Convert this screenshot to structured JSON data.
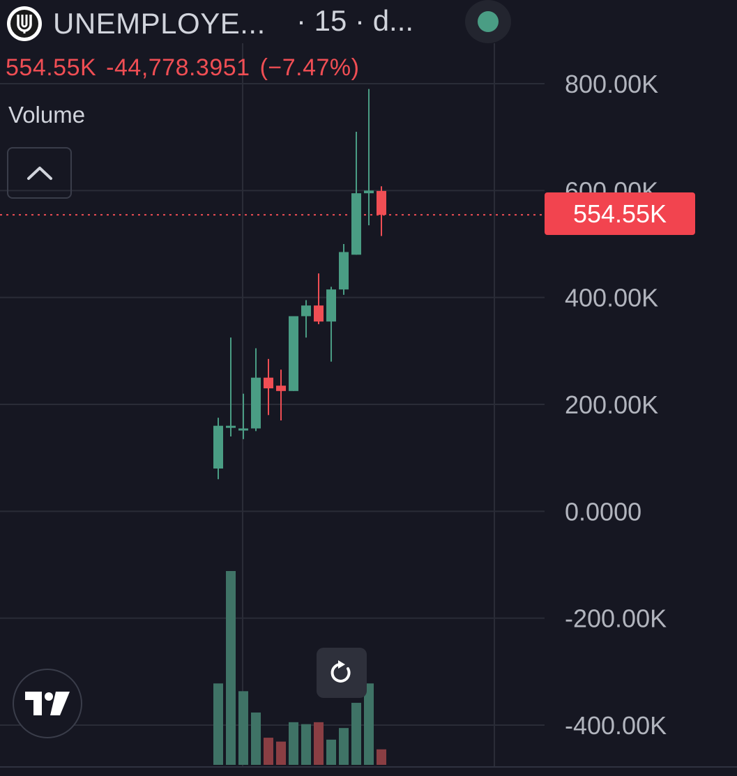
{
  "header": {
    "symbol": "UNEMPLOYE...",
    "interval": "· 15 · d...",
    "last_price": "554.55K",
    "change": "-44,778.3951",
    "change_pct": "(−7.47%)",
    "volume_label": "Volume"
  },
  "price_tag": "554.55K",
  "colors": {
    "background": "#161722",
    "up": "#4a9d84",
    "down": "#f04e54",
    "volume_up": "#3f7366",
    "volume_down": "#8a3e43",
    "grid": "#2a2c37"
  },
  "chart_data": {
    "type": "candlestick",
    "y_ticks": [
      "800.00K",
      "600.00K",
      "400.00K",
      "200.00K",
      "0.0000",
      "-200.00K",
      "-400.00K"
    ],
    "ylim": [
      -480000,
      830000
    ],
    "last_value": 554550,
    "candles": [
      {
        "open": 80000,
        "high": 175000,
        "low": 60000,
        "close": 160000
      },
      {
        "open": 160000,
        "high": 325000,
        "low": 140000,
        "close": 160000
      },
      {
        "open": 155000,
        "high": 220000,
        "low": 135000,
        "close": 155000
      },
      {
        "open": 155000,
        "high": 305000,
        "low": 150000,
        "close": 250000
      },
      {
        "open": 250000,
        "high": 285000,
        "low": 180000,
        "close": 230000
      },
      {
        "open": 235000,
        "high": 265000,
        "low": 170000,
        "close": 225000
      },
      {
        "open": 225000,
        "high": 360000,
        "low": 225000,
        "close": 365000
      },
      {
        "open": 365000,
        "high": 395000,
        "low": 325000,
        "close": 385000
      },
      {
        "open": 385000,
        "high": 445000,
        "low": 350000,
        "close": 355000
      },
      {
        "open": 355000,
        "high": 420000,
        "low": 280000,
        "close": 415000
      },
      {
        "open": 415000,
        "high": 500000,
        "low": 405000,
        "close": 485000
      },
      {
        "open": 480000,
        "high": 710000,
        "low": 480000,
        "close": 595000
      },
      {
        "open": 595000,
        "high": 790000,
        "low": 535000,
        "close": 600000
      },
      {
        "open": 599330,
        "high": 608000,
        "low": 515000,
        "close": 554550
      }
    ],
    "volume": [
      0.42,
      1.0,
      0.38,
      0.27,
      0.14,
      0.12,
      0.22,
      0.21,
      0.22,
      0.13,
      0.19,
      0.32,
      0.42,
      0.08
    ]
  }
}
